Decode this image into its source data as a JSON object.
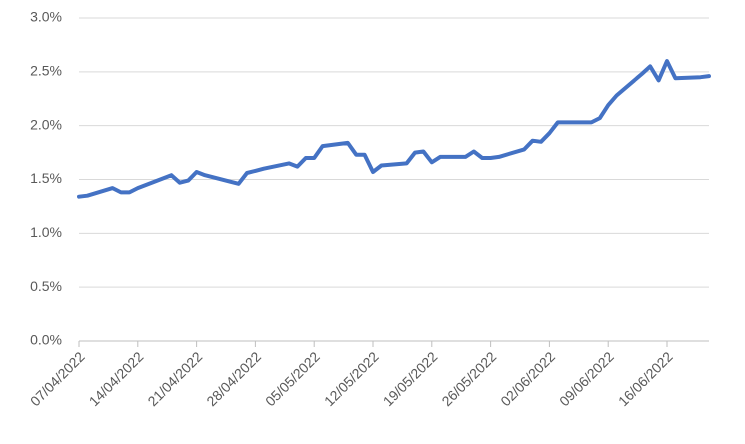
{
  "chart_data": {
    "type": "line",
    "color": "#4472c4",
    "grid": true,
    "x": [
      "07/04/2022",
      "08/04/2022",
      "11/04/2022",
      "12/04/2022",
      "13/04/2022",
      "14/04/2022",
      "18/04/2022",
      "19/04/2022",
      "20/04/2022",
      "21/04/2022",
      "22/04/2022",
      "25/04/2022",
      "26/04/2022",
      "27/04/2022",
      "28/04/2022",
      "29/04/2022",
      "02/05/2022",
      "03/05/2022",
      "04/05/2022",
      "05/05/2022",
      "06/05/2022",
      "09/05/2022",
      "10/05/2022",
      "11/05/2022",
      "12/05/2022",
      "13/05/2022",
      "16/05/2022",
      "17/05/2022",
      "18/05/2022",
      "19/05/2022",
      "20/05/2022",
      "23/05/2022",
      "24/05/2022",
      "25/05/2022",
      "26/05/2022",
      "27/05/2022",
      "30/05/2022",
      "31/05/2022",
      "01/06/2022",
      "02/06/2022",
      "03/06/2022",
      "06/06/2022",
      "07/06/2022",
      "08/06/2022",
      "09/06/2022",
      "10/06/2022",
      "13/06/2022",
      "14/06/2022",
      "15/06/2022",
      "16/06/2022",
      "17/06/2022",
      "20/06/2022",
      "21/06/2022"
    ],
    "values": [
      1.34,
      1.35,
      1.42,
      1.38,
      1.38,
      1.42,
      1.54,
      1.47,
      1.49,
      1.57,
      1.54,
      1.48,
      1.46,
      1.56,
      1.58,
      1.6,
      1.65,
      1.62,
      1.7,
      1.7,
      1.81,
      1.84,
      1.73,
      1.73,
      1.57,
      1.63,
      1.65,
      1.75,
      1.76,
      1.66,
      1.71,
      1.71,
      1.76,
      1.7,
      1.7,
      1.71,
      1.78,
      1.86,
      1.85,
      1.93,
      2.03,
      2.03,
      2.03,
      2.07,
      2.19,
      2.28,
      2.48,
      2.55,
      2.42,
      2.6,
      2.44,
      2.45,
      2.46
    ],
    "ylim": [
      0,
      3
    ],
    "yticks": [
      {
        "value": 0,
        "label": "0.0%"
      },
      {
        "value": 0.5,
        "label": "0.5%"
      },
      {
        "value": 1,
        "label": "1.0%"
      },
      {
        "value": 1.5,
        "label": "1.5%"
      },
      {
        "value": 2,
        "label": "2.0%"
      },
      {
        "value": 2.5,
        "label": "2.5%"
      },
      {
        "value": 3,
        "label": "3.0%"
      }
    ],
    "xlim": [
      "07/04/2022",
      "21/06/2022"
    ],
    "xticks": [
      "07/04/2022",
      "14/04/2022",
      "21/04/2022",
      "28/04/2022",
      "05/05/2022",
      "12/05/2022",
      "19/05/2022",
      "26/05/2022",
      "02/06/2022",
      "09/06/2022",
      "16/06/2022"
    ]
  }
}
